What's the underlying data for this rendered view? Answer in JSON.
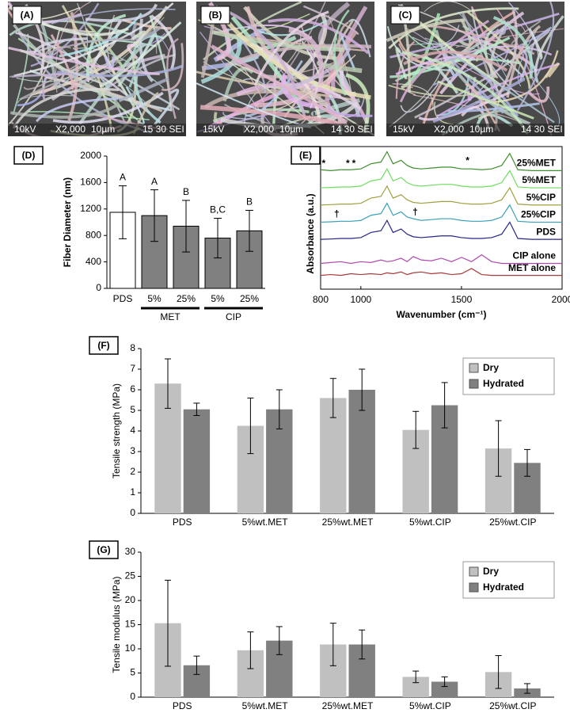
{
  "images": [
    {
      "label": "(A)",
      "caption": [
        "10kV",
        "X2,000",
        "10µm",
        "15 30 SEI"
      ]
    },
    {
      "label": "(B)",
      "caption": [
        "15kV",
        "X2,000",
        "10µm",
        "14 30 SEI"
      ]
    },
    {
      "label": "(C)",
      "caption": [
        "15kV",
        "X2,000",
        "10µm",
        "14 30 SEI"
      ]
    }
  ],
  "chart_data": [
    {
      "label": "(D)",
      "type": "bar",
      "ylabel": "Fiber Diameter (nm)",
      "categories": [
        "PDS",
        "5%",
        "25%",
        "5%",
        "25%"
      ],
      "values": [
        1150,
        1100,
        940,
        760,
        870
      ],
      "errors": [
        400,
        390,
        390,
        300,
        310
      ],
      "colors": [
        "#ffffff",
        "#808080",
        "#808080",
        "#808080",
        "#808080"
      ],
      "letters": [
        "A",
        "A",
        "B",
        "B,C",
        "B"
      ],
      "groups": [
        "MET",
        "CIP"
      ],
      "ylim": [
        0,
        2000
      ],
      "yticks": [
        0,
        400,
        800,
        1200,
        1600,
        2000
      ]
    },
    {
      "label": "(E)",
      "type": "line",
      "xlabel": "Wavenumber (cm⁻¹)",
      "ylabel": "Absorbance (a.u.)",
      "x": [
        800,
        850,
        900,
        950,
        1000,
        1050,
        1100,
        1130,
        1160,
        1200,
        1230,
        1260,
        1300,
        1350,
        1400,
        1450,
        1500,
        1550,
        1600,
        1650,
        1700,
        1740,
        1780,
        1850,
        2000
      ],
      "series": [
        {
          "name": "25%MET",
          "color": "#3f8f2f",
          "values": [
            6.95,
            6.9,
            6.95,
            6.95,
            7.0,
            7.3,
            7.4,
            8.0,
            7.3,
            7.5,
            7.2,
            7.05,
            7.0,
            7.05,
            7.1,
            7.1,
            7.0,
            7.0,
            6.95,
            7.0,
            7.2,
            7.9,
            6.95,
            6.9,
            6.9
          ]
        },
        {
          "name": "5%MET",
          "color": "#6ede5e",
          "values": [
            5.9,
            5.92,
            5.95,
            5.95,
            6.0,
            6.3,
            6.4,
            7.0,
            6.3,
            6.5,
            6.2,
            6.05,
            6.0,
            6.05,
            6.1,
            6.1,
            6.0,
            5.95,
            5.95,
            6.0,
            6.2,
            6.9,
            5.95,
            5.9,
            5.9
          ]
        },
        {
          "name": "5%CIP",
          "color": "#a0a040",
          "values": [
            4.9,
            4.92,
            4.95,
            4.95,
            5.0,
            5.3,
            5.4,
            6.0,
            5.3,
            5.5,
            5.2,
            5.05,
            5.0,
            5.05,
            5.1,
            5.1,
            5.0,
            4.95,
            4.95,
            5.0,
            5.2,
            5.9,
            4.95,
            4.9,
            4.9
          ]
        },
        {
          "name": "25%CIP",
          "color": "#3aa0b8",
          "values": [
            3.9,
            3.92,
            3.95,
            3.95,
            4.0,
            4.3,
            4.4,
            5.0,
            4.3,
            4.5,
            4.2,
            4.1,
            4.0,
            4.05,
            4.1,
            4.1,
            4.0,
            3.95,
            3.95,
            4.0,
            4.2,
            4.9,
            3.95,
            3.9,
            3.9
          ]
        },
        {
          "name": "PDS",
          "color": "#26268a",
          "values": [
            2.9,
            2.92,
            2.95,
            2.95,
            3.0,
            3.3,
            3.4,
            4.0,
            3.3,
            3.5,
            3.2,
            3.05,
            3.0,
            3.05,
            3.1,
            3.1,
            3.0,
            2.95,
            2.95,
            3.0,
            3.2,
            3.9,
            2.95,
            2.9,
            2.9
          ]
        },
        {
          "name": "CIP alone",
          "color": "#b048b0",
          "values": [
            1.5,
            1.55,
            1.6,
            1.5,
            1.6,
            1.55,
            1.7,
            1.6,
            1.65,
            1.8,
            1.6,
            1.9,
            1.7,
            1.65,
            1.8,
            1.6,
            1.85,
            1.6,
            2.0,
            1.6,
            1.5,
            1.5,
            1.5,
            1.5,
            1.5
          ]
        },
        {
          "name": "MET alone",
          "color": "#a83a3a",
          "values": [
            0.8,
            0.85,
            0.8,
            0.9,
            0.85,
            0.9,
            0.85,
            0.95,
            0.9,
            1.0,
            0.85,
            0.95,
            1.0,
            0.9,
            0.95,
            0.85,
            0.9,
            1.2,
            0.85,
            0.8,
            0.8,
            0.8,
            0.8,
            0.8,
            0.8
          ]
        }
      ],
      "annotations": [
        {
          "text": "*",
          "x": 815,
          "y": 7.3
        },
        {
          "text": "*",
          "x": 935,
          "y": 7.3
        },
        {
          "text": "*",
          "x": 965,
          "y": 7.3
        },
        {
          "text": "*",
          "x": 1530,
          "y": 7.45
        },
        {
          "text": "†",
          "x": 880,
          "y": 4.35
        },
        {
          "text": "†",
          "x": 1270,
          "y": 4.45
        }
      ],
      "xlim": [
        800,
        2000
      ],
      "xticks": [
        800,
        1000,
        1500,
        2000
      ],
      "ylim": [
        0,
        8.3
      ]
    },
    {
      "label": "(F)",
      "type": "grouped_bar",
      "ylabel": "Tensile strength (MPa)",
      "categories": [
        "PDS",
        "5%wt.MET",
        "25%wt.MET",
        "5%wt.CIP",
        "25%wt.CIP"
      ],
      "series": [
        {
          "name": "Dry",
          "color": "#c0c0c0",
          "values": [
            6.3,
            4.25,
            5.6,
            4.05,
            3.15
          ],
          "errors": [
            1.2,
            1.35,
            0.95,
            0.9,
            1.35
          ]
        },
        {
          "name": "Hydrated",
          "color": "#808080",
          "values": [
            5.05,
            5.05,
            6.0,
            5.25,
            2.45
          ],
          "errors": [
            0.3,
            0.95,
            1.0,
            1.1,
            0.65
          ]
        }
      ],
      "ylim": [
        0,
        8
      ],
      "yticks": [
        0,
        1,
        2,
        3,
        4,
        5,
        6,
        7,
        8
      ],
      "legend": "upper right"
    },
    {
      "label": "(G)",
      "type": "grouped_bar",
      "ylabel": "Tensile modulus (MPa)",
      "categories": [
        "PDS",
        "5%wt.MET",
        "25%wt.MET",
        "5%wt.CIP",
        "25%wt.CIP"
      ],
      "series": [
        {
          "name": "Dry",
          "color": "#c0c0c0",
          "values": [
            15.3,
            9.7,
            10.9,
            4.2,
            5.2
          ],
          "errors": [
            8.9,
            3.8,
            4.4,
            1.2,
            3.4
          ]
        },
        {
          "name": "Hydrated",
          "color": "#808080",
          "values": [
            6.6,
            11.7,
            10.9,
            3.2,
            1.8
          ],
          "errors": [
            1.9,
            2.9,
            3.0,
            1.0,
            1.0
          ]
        }
      ],
      "ylim": [
        0,
        30
      ],
      "yticks": [
        0,
        5,
        10,
        15,
        20,
        25,
        30
      ],
      "legend": "upper right"
    }
  ]
}
